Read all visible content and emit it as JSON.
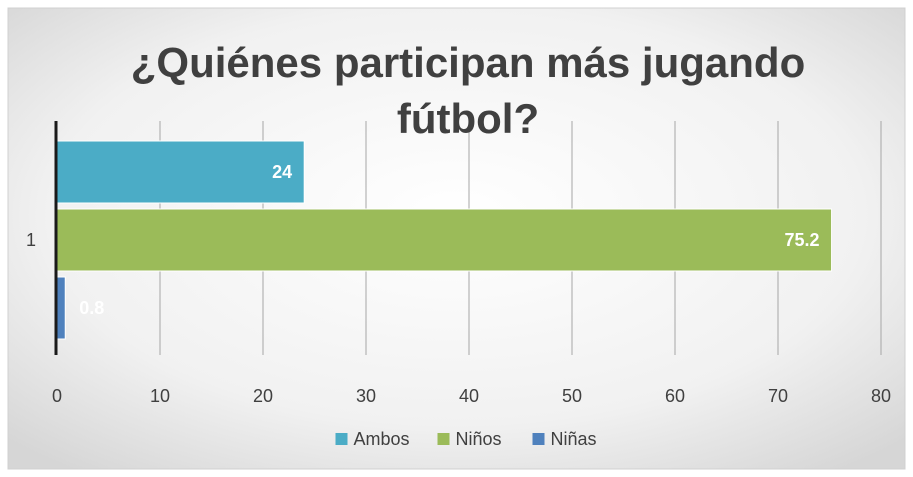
{
  "chart_data": {
    "type": "bar",
    "orientation": "horizontal",
    "title": "¿Quiénes participan más jugando fútbol?",
    "title_lines": [
      "¿Quiénes participan más jugando",
      "fútbol?"
    ],
    "categories": [
      "1"
    ],
    "series": [
      {
        "name": "Ambos",
        "values": [
          24
        ],
        "color": "#4bacc6",
        "label": "24"
      },
      {
        "name": "Niños",
        "values": [
          75.2
        ],
        "color": "#9bbb59",
        "label": "75.2"
      },
      {
        "name": "Niñas",
        "values": [
          0.8
        ],
        "color": "#4f81bd",
        "label": "0.8"
      }
    ],
    "xlim": [
      0,
      80
    ],
    "xticks": [
      "0",
      "10",
      "20",
      "30",
      "40",
      "50",
      "60",
      "70",
      "80"
    ],
    "grid": true,
    "legend": "bottom"
  }
}
